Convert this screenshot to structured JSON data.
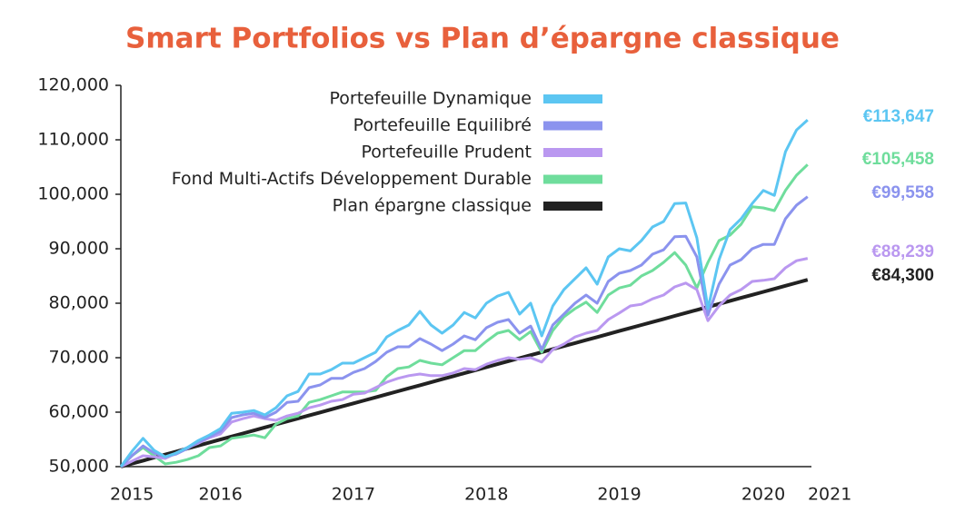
{
  "chart_data": {
    "type": "line",
    "title": "Smart Portfolios vs Plan d’épargne classique",
    "categories": [
      null,
      "2015",
      null,
      null,
      null,
      null,
      null,
      null,
      null,
      "2016",
      null,
      null,
      null,
      null,
      null,
      null,
      null,
      null,
      null,
      null,
      null,
      "2017",
      null,
      null,
      null,
      null,
      null,
      null,
      null,
      null,
      null,
      null,
      null,
      "2018",
      null,
      null,
      null,
      null,
      null,
      null,
      null,
      null,
      null,
      null,
      null,
      "2019",
      null,
      null,
      null,
      null,
      null,
      null,
      null,
      null,
      null,
      null,
      null,
      null,
      "2020",
      null,
      null,
      null,
      null,
      null,
      "2021"
    ],
    "ylim": [
      50000,
      120000
    ],
    "yticks": [
      {
        "value": 50000,
        "label": "50,000"
      },
      {
        "value": 60000,
        "label": "60,000"
      },
      {
        "value": 70000,
        "label": "70,000"
      },
      {
        "value": 80000,
        "label": "80,000"
      },
      {
        "value": 90000,
        "label": "90,000"
      },
      {
        "value": 100000,
        "label": "100,000"
      },
      {
        "value": 110000,
        "label": "110,000"
      },
      {
        "value": 120000,
        "label": "120,000"
      }
    ],
    "grid": false,
    "series": [
      {
        "name": "Portefeuille Dynamique",
        "color": "#5cc6f2",
        "values": [
          50000,
          52800,
          55200,
          53000,
          51800,
          52500,
          53500,
          54800,
          55800,
          57000,
          59800,
          60000,
          60300,
          59500,
          60800,
          63000,
          63800,
          67000,
          67000,
          67800,
          69000,
          69000,
          70000,
          71000,
          73800,
          75000,
          76000,
          78500,
          76000,
          74500,
          76000,
          78300,
          77300,
          80000,
          81300,
          82000,
          78000,
          80000,
          74000,
          79500,
          82500,
          84500,
          86500,
          83500,
          88500,
          90000,
          89600,
          91500,
          94000,
          95000,
          98300,
          98400,
          92000,
          79000,
          88000,
          93500,
          95500,
          98300,
          100700,
          99800,
          107800,
          111800,
          113647,
          null,
          null
        ],
        "value_labels": [
          null,
          null,
          null,
          null,
          null,
          null,
          null,
          null,
          null,
          null,
          null,
          null,
          null,
          null,
          null,
          null,
          null,
          null,
          null,
          null,
          null,
          null,
          null,
          null,
          null,
          null,
          null,
          null,
          null,
          null,
          null,
          null,
          null,
          null,
          null,
          null,
          null,
          null,
          null,
          null,
          null,
          null,
          null,
          null,
          null,
          null,
          null,
          null,
          null,
          null,
          null,
          null,
          null,
          null,
          null,
          null,
          null,
          null,
          null,
          null,
          null,
          null,
          "€113,647",
          null,
          null
        ]
      },
      {
        "name": "Portefeuille Equilibré",
        "color": "#8b93ee",
        "values": [
          50000,
          52000,
          53800,
          52500,
          51800,
          52300,
          53300,
          54500,
          55500,
          56500,
          59000,
          59500,
          59800,
          59000,
          60000,
          61800,
          62000,
          64500,
          65000,
          66200,
          66200,
          67300,
          68000,
          69300,
          71000,
          72000,
          72000,
          73500,
          72500,
          71300,
          72500,
          74000,
          73300,
          75500,
          76500,
          77000,
          74500,
          75800,
          71500,
          76000,
          78000,
          80000,
          81500,
          80000,
          84000,
          85500,
          86000,
          87000,
          89000,
          89800,
          92200,
          92300,
          88500,
          77800,
          83500,
          87000,
          88000,
          90000,
          90800,
          90800,
          95500,
          98000,
          99558,
          null,
          null
        ],
        "value_labels": [
          null,
          null,
          null,
          null,
          null,
          null,
          null,
          null,
          null,
          null,
          null,
          null,
          null,
          null,
          null,
          null,
          null,
          null,
          null,
          null,
          null,
          null,
          null,
          null,
          null,
          null,
          null,
          null,
          null,
          null,
          null,
          null,
          null,
          null,
          null,
          null,
          null,
          null,
          null,
          null,
          null,
          null,
          null,
          null,
          null,
          null,
          null,
          null,
          null,
          null,
          null,
          null,
          null,
          null,
          null,
          null,
          null,
          null,
          null,
          null,
          null,
          null,
          "€99,558",
          null,
          null
        ]
      },
      {
        "name": "Portefeuille Prudent",
        "color": "#ba98f0",
        "values": [
          50000,
          51000,
          52000,
          51800,
          51500,
          52500,
          53500,
          54300,
          55300,
          56000,
          58200,
          58800,
          59300,
          58800,
          58500,
          59300,
          59800,
          60800,
          61300,
          62000,
          62300,
          63300,
          63500,
          64500,
          65500,
          66200,
          66700,
          67000,
          66700,
          66700,
          67200,
          68000,
          67800,
          68800,
          69500,
          70000,
          69700,
          70000,
          69200,
          71500,
          72500,
          73800,
          74500,
          75000,
          77000,
          78200,
          79500,
          79800,
          80800,
          81500,
          83000,
          83700,
          82500,
          76800,
          79500,
          81500,
          82500,
          84000,
          84200,
          84500,
          86500,
          87800,
          88239,
          null,
          null
        ],
        "value_labels": [
          null,
          null,
          null,
          null,
          null,
          null,
          null,
          null,
          null,
          null,
          null,
          null,
          null,
          null,
          null,
          null,
          null,
          null,
          null,
          null,
          null,
          null,
          null,
          null,
          null,
          null,
          null,
          null,
          null,
          null,
          null,
          null,
          null,
          null,
          null,
          null,
          null,
          null,
          null,
          null,
          null,
          null,
          null,
          null,
          null,
          null,
          null,
          null,
          null,
          null,
          null,
          null,
          null,
          null,
          null,
          null,
          null,
          null,
          null,
          null,
          null,
          null,
          "€88,239",
          null,
          null
        ]
      },
      {
        "name": "Fond Multi-Actifs Développement Durable",
        "color": "#6fdd9c",
        "values": [
          50000,
          52000,
          53500,
          52000,
          50500,
          50800,
          51300,
          52000,
          53500,
          53800,
          55200,
          55500,
          55800,
          55300,
          57800,
          58800,
          59300,
          61800,
          62300,
          63000,
          63700,
          63700,
          63700,
          64000,
          66500,
          68000,
          68300,
          69500,
          69000,
          68700,
          70000,
          71300,
          71300,
          73000,
          74500,
          75000,
          73300,
          74800,
          71000,
          75000,
          77500,
          79000,
          80200,
          78300,
          81500,
          82800,
          83300,
          85000,
          86000,
          87500,
          89300,
          87000,
          82800,
          87500,
          91500,
          92500,
          94500,
          97700,
          97500,
          97000,
          100700,
          103500,
          105458,
          null,
          null
        ],
        "value_labels": [
          null,
          null,
          null,
          null,
          null,
          null,
          null,
          null,
          null,
          null,
          null,
          null,
          null,
          null,
          null,
          null,
          null,
          null,
          null,
          null,
          null,
          null,
          null,
          null,
          null,
          null,
          null,
          null,
          null,
          null,
          null,
          null,
          null,
          null,
          null,
          null,
          null,
          null,
          null,
          null,
          null,
          null,
          null,
          null,
          null,
          null,
          null,
          null,
          null,
          null,
          null,
          null,
          null,
          null,
          null,
          null,
          null,
          null,
          null,
          null,
          null,
          null,
          "€105,458",
          null,
          null
        ]
      },
      {
        "name": "Plan épargne classique",
        "color": "#222222",
        "values": [
          50000,
          50553,
          51106,
          51660,
          52213,
          52766,
          53319,
          53873,
          54426,
          54979,
          55532,
          56085,
          56639,
          57192,
          57745,
          58298,
          58852,
          59405,
          59958,
          60511,
          61065,
          61618,
          62171,
          62724,
          63277,
          63831,
          64384,
          64937,
          65490,
          66044,
          66597,
          67150,
          67703,
          68256,
          68810,
          69363,
          69916,
          70469,
          71023,
          71576,
          72129,
          72682,
          73235,
          73789,
          74342,
          74895,
          75448,
          76002,
          76555,
          77108,
          77661,
          78215,
          78768,
          79321,
          79874,
          80427,
          80981,
          81534,
          82087,
          82640,
          83194,
          83747,
          84300,
          null,
          null
        ],
        "value_labels": [
          null,
          null,
          null,
          null,
          null,
          null,
          null,
          null,
          null,
          null,
          null,
          null,
          null,
          null,
          null,
          null,
          null,
          null,
          null,
          null,
          null,
          null,
          null,
          null,
          null,
          null,
          null,
          null,
          null,
          null,
          null,
          null,
          null,
          null,
          null,
          null,
          null,
          null,
          null,
          null,
          null,
          null,
          null,
          null,
          null,
          null,
          null,
          null,
          null,
          null,
          null,
          null,
          null,
          null,
          null,
          null,
          null,
          null,
          null,
          null,
          null,
          null,
          "€84,300",
          null,
          null
        ]
      }
    ]
  }
}
